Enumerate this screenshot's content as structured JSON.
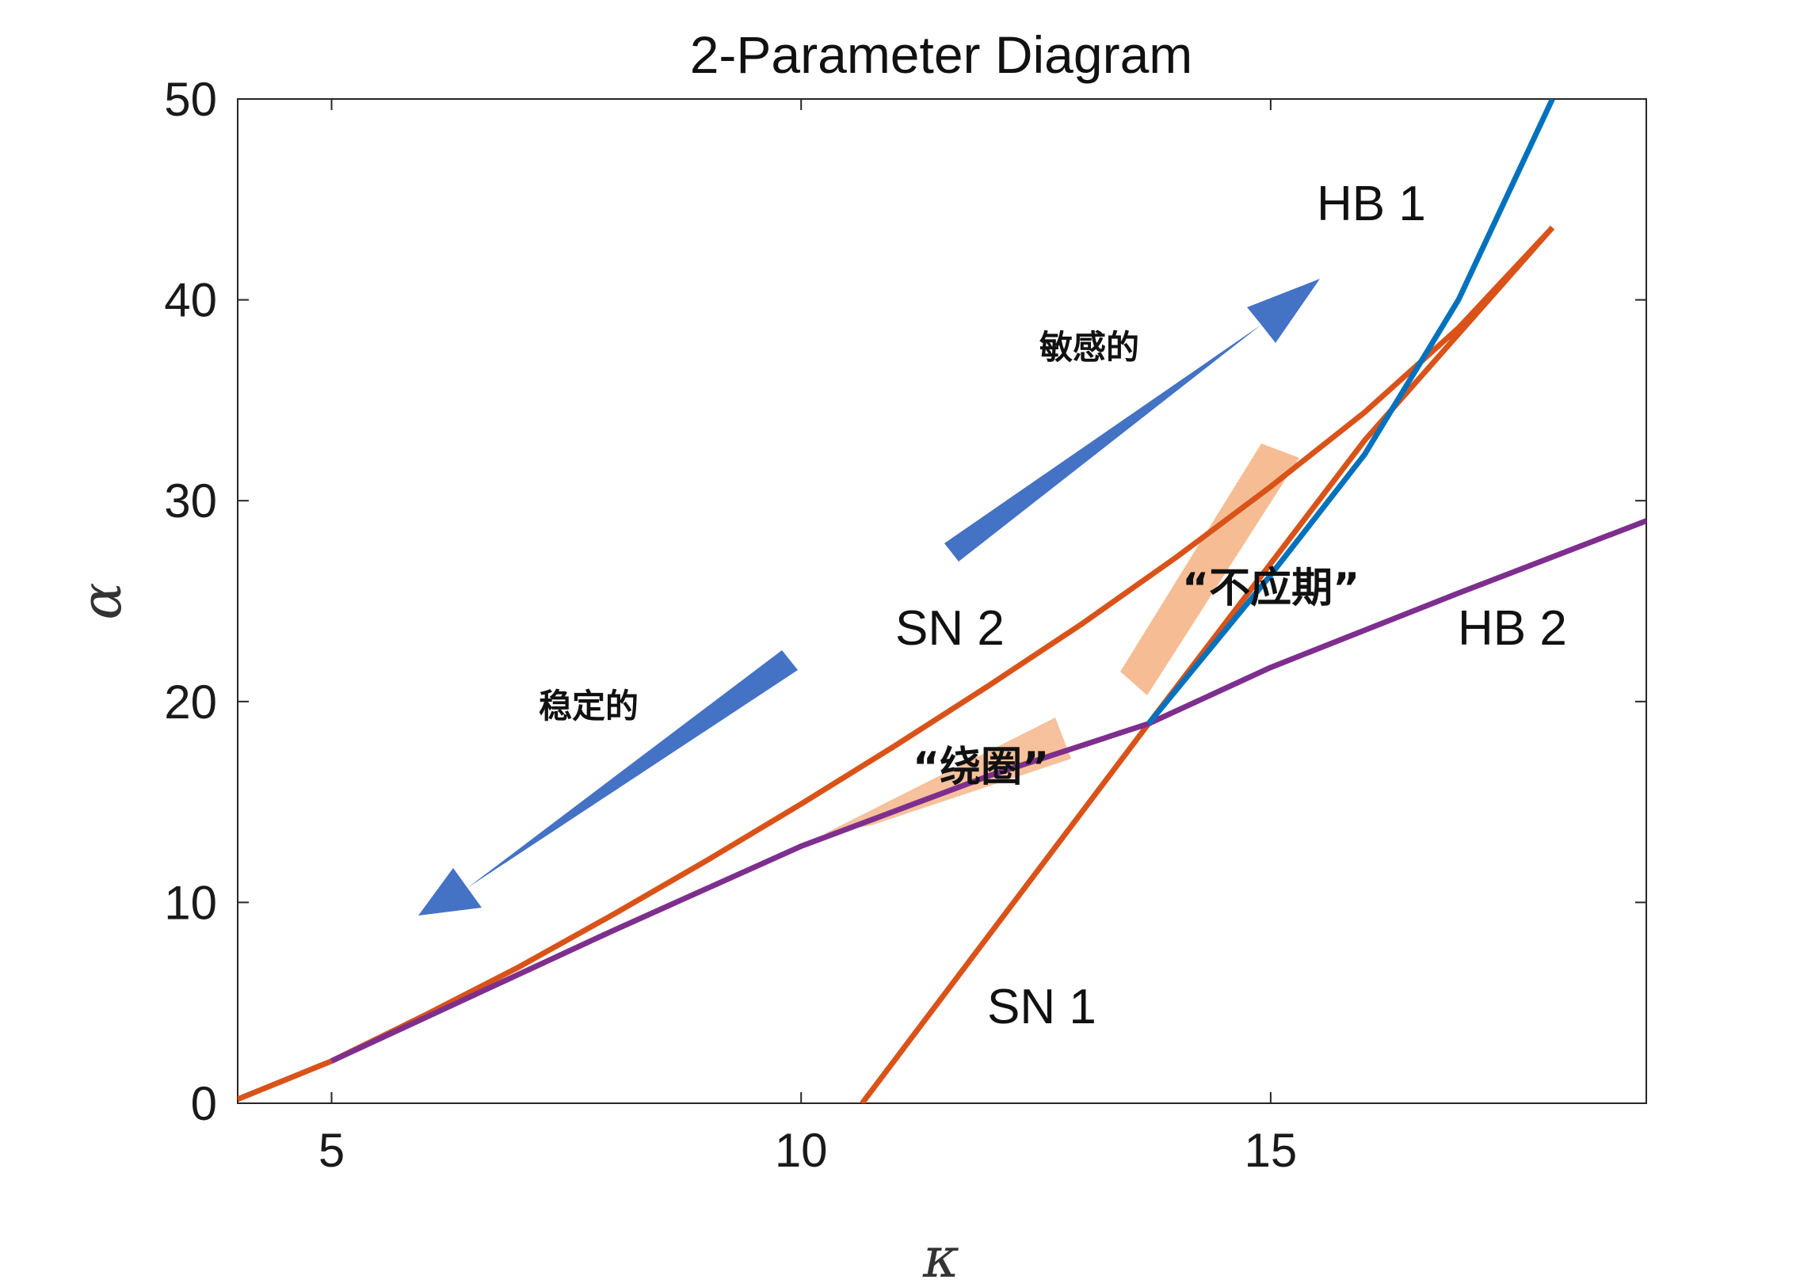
{
  "chart_data": {
    "type": "line",
    "title": "2-Parameter Diagram",
    "xlabel": "κ",
    "ylabel": "α",
    "xlim": [
      4,
      19
    ],
    "ylim": [
      0,
      50
    ],
    "xticks": [
      "5",
      "10",
      "15"
    ],
    "yticks": [
      "0",
      "10",
      "20",
      "30",
      "40",
      "50"
    ],
    "grid": false,
    "colors": {
      "sn": "#D95319",
      "hb1": "#0072BD",
      "hb2": "#7E2F8E",
      "arrow": "#4472C4",
      "highlight": "#F4B183"
    },
    "series": [
      {
        "name": "SN 1",
        "x": [
          10.65,
          13.7,
          16.0,
          18.0
        ],
        "y": [
          0,
          18.9,
          33.0,
          43.6
        ]
      },
      {
        "name": "SN 2",
        "x": [
          4.0,
          5.0,
          6.0,
          7.0,
          8.0,
          9.0,
          10.0,
          11.0,
          12.0,
          13.0,
          14.0,
          15.0,
          16.0,
          17.0,
          18.0
        ],
        "y": [
          0.2,
          2.1,
          4.4,
          6.8,
          9.4,
          12.1,
          14.9,
          17.8,
          20.8,
          23.9,
          27.2,
          30.7,
          34.4,
          38.6,
          43.6
        ]
      },
      {
        "name": "HB 1",
        "x": [
          13.7,
          15.0,
          16.0,
          17.0,
          18.0
        ],
        "y": [
          18.9,
          26.3,
          32.3,
          40.0,
          50.0
        ]
      },
      {
        "name": "HB 2",
        "x": [
          5.0,
          8.0,
          10.0,
          12.0,
          13.7,
          15.0,
          17.0,
          19.0
        ],
        "y": [
          2.1,
          8.6,
          12.8,
          16.3,
          18.9,
          21.7,
          25.4,
          29.0
        ]
      }
    ],
    "annotations": {
      "stable": "稳定的",
      "sensitive": "敏感的",
      "winding": "“绕圈”",
      "refractory": "“不应期”"
    }
  }
}
